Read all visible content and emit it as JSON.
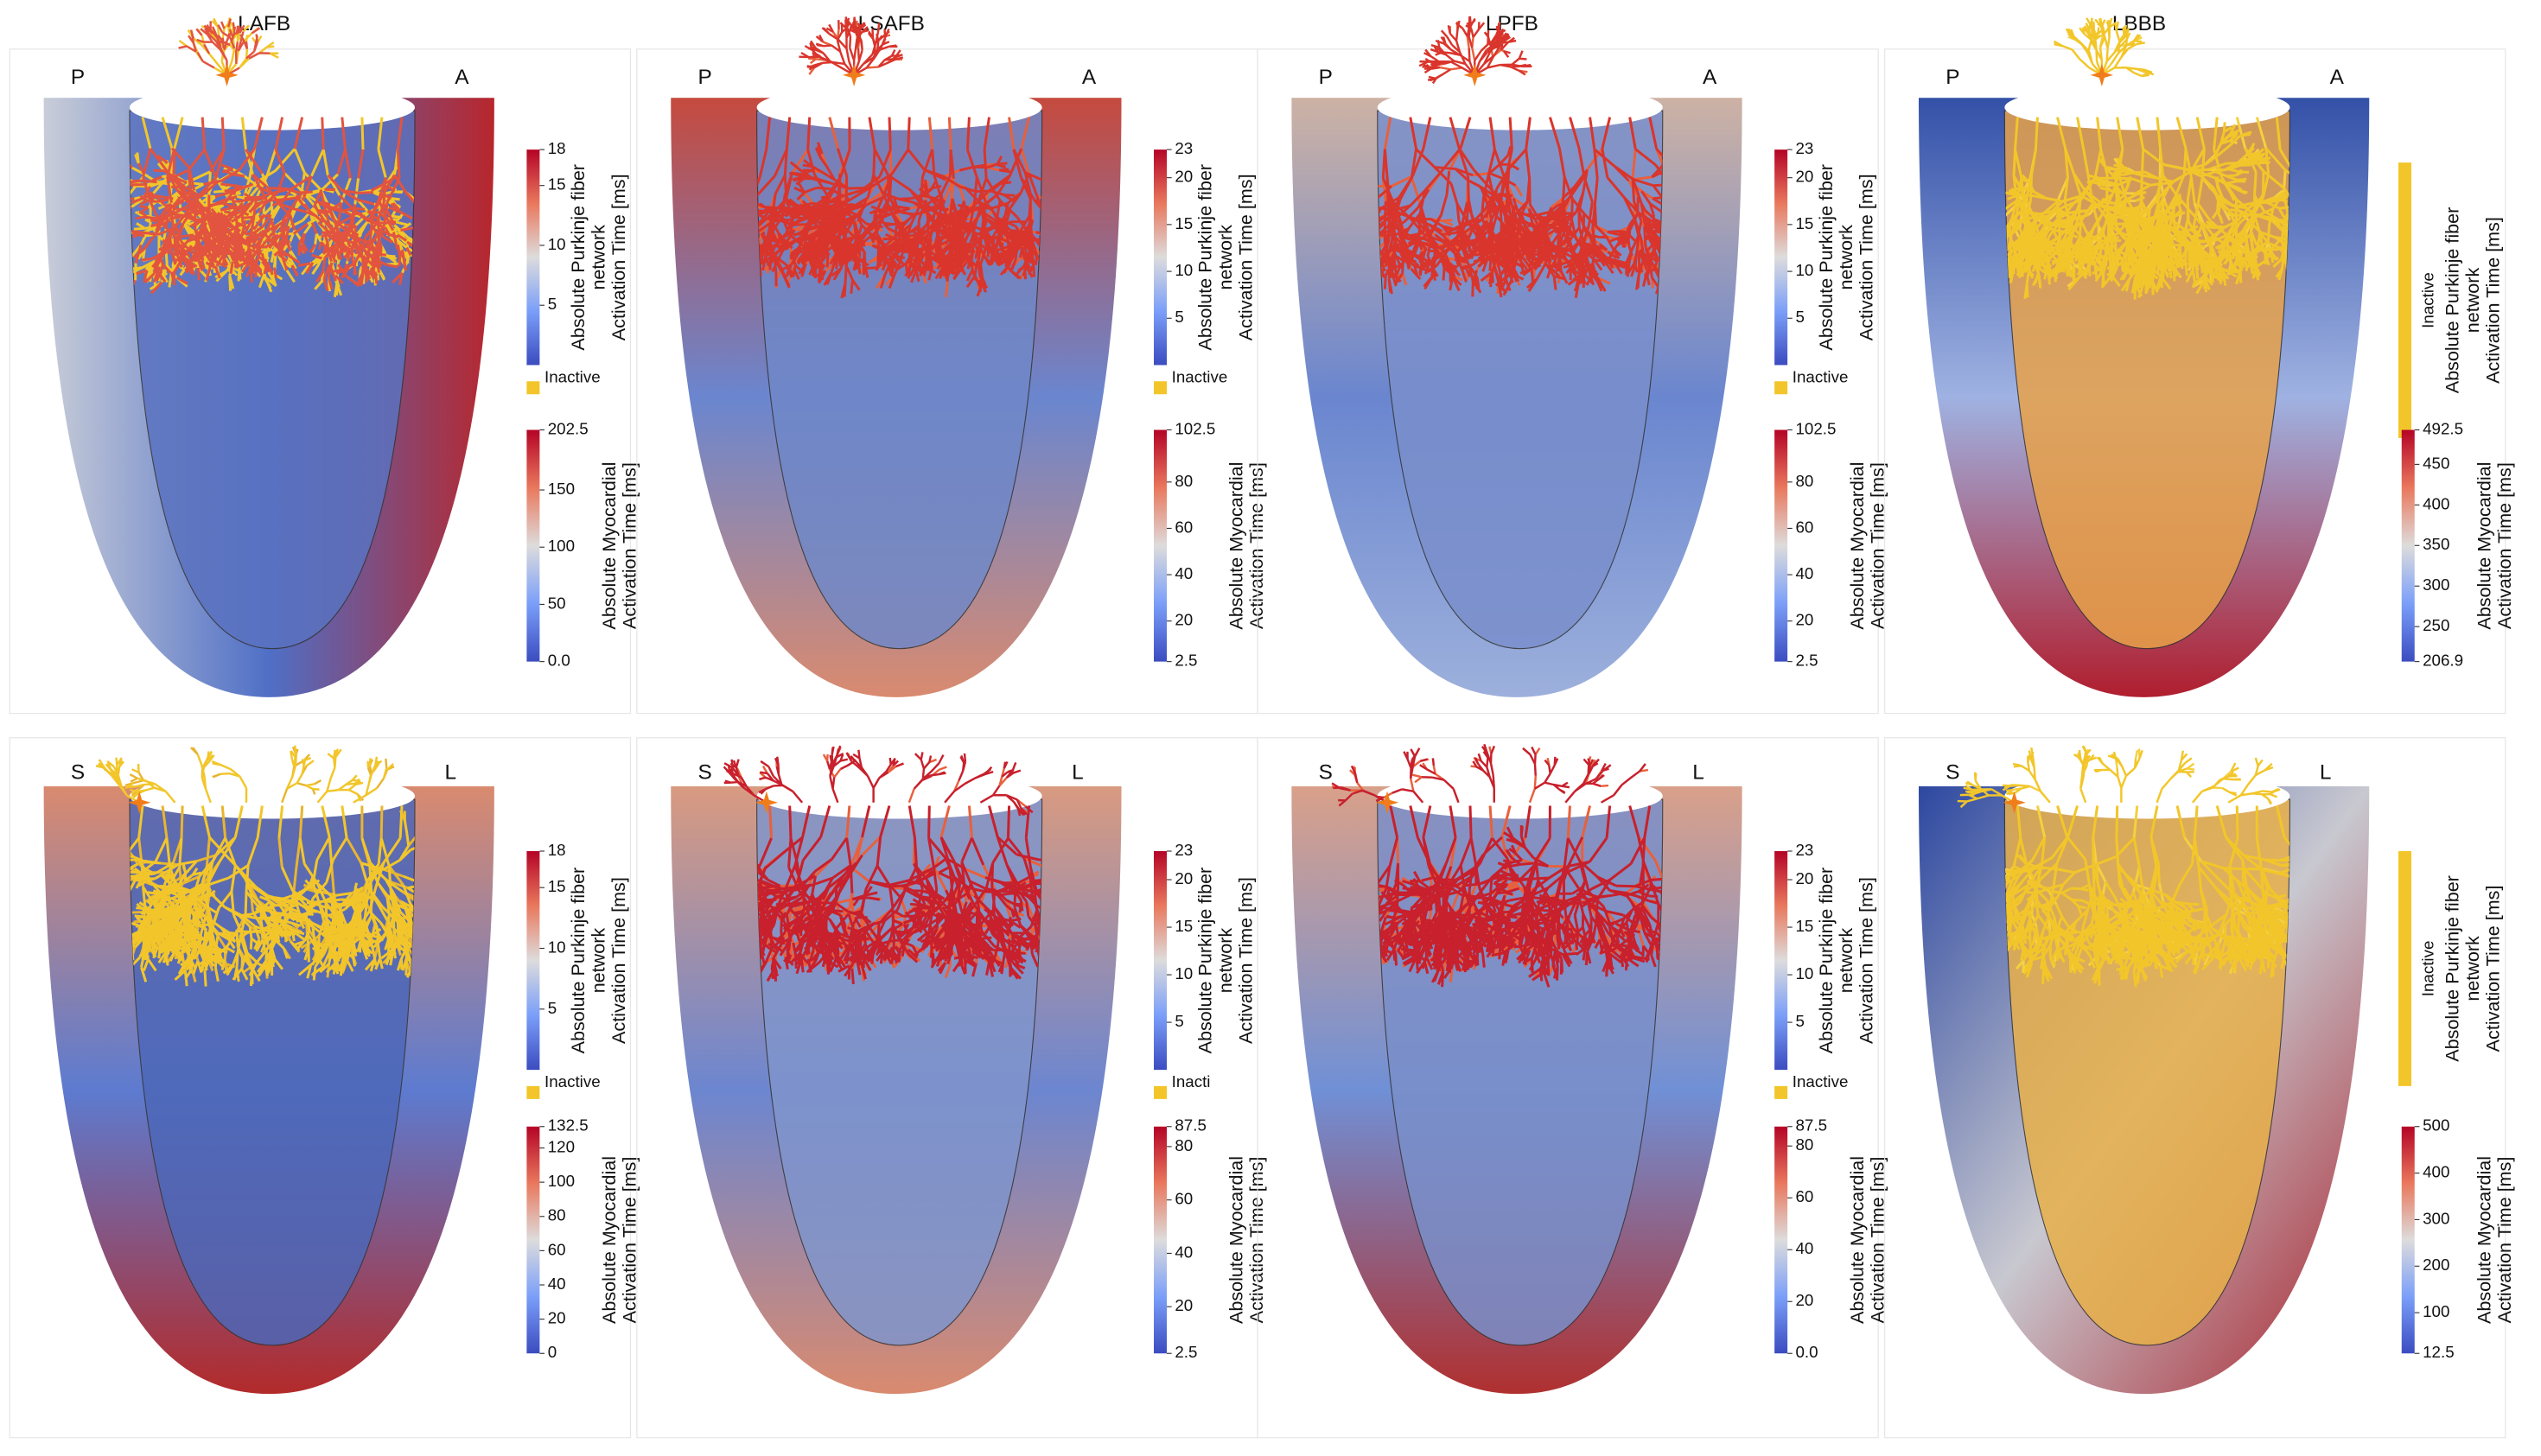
{
  "column_titles": [
    "LAFB",
    "LSAFB",
    "LPFB",
    "LBBB"
  ],
  "panels": [
    {
      "orientation": [
        "P",
        "A"
      ],
      "purkinje_colorbar": {
        "label": [
          "Absolute Purkinje fiber",
          "network",
          "Activation Time [ms]"
        ],
        "ticks": [
          18,
          15,
          10,
          5
        ],
        "range": [
          0,
          18
        ],
        "inactive": "Inactive"
      },
      "myocardial_colorbar": {
        "label": [
          "Absolute Myocardial",
          "Activation Time [ms]"
        ],
        "ticks": [
          202.5,
          150,
          100,
          50,
          {
            "value": 0,
            "label": "0.0"
          }
        ],
        "range": [
          0,
          202.5
        ]
      }
    },
    {
      "orientation": [
        "P",
        "A"
      ],
      "purkinje_colorbar": {
        "label": [
          "Absolute Purkinje fiber",
          "network",
          "Activation Time [ms]"
        ],
        "ticks": [
          23,
          20,
          15,
          10,
          5
        ],
        "range": [
          0,
          23
        ],
        "inactive": "Inactive"
      },
      "myocardial_colorbar": {
        "label": [
          "Absolute Myocardial",
          "Activation Time [ms]"
        ],
        "ticks": [
          102.5,
          80,
          60,
          40,
          20,
          2.5
        ],
        "range": [
          2.5,
          102.5
        ]
      }
    },
    {
      "orientation": [
        "P",
        "A"
      ],
      "purkinje_colorbar": {
        "label": [
          "Absolute Purkinje fiber",
          "network",
          "Activation Time [ms]"
        ],
        "ticks": [
          23,
          20,
          15,
          10,
          5
        ],
        "range": [
          0,
          23
        ],
        "inactive": "Inactive"
      },
      "myocardial_colorbar": {
        "label": [
          "Absolute Myocardial",
          "Activation Time [ms]"
        ],
        "ticks": [
          102.5,
          80,
          60,
          40,
          20,
          2.5
        ],
        "range": [
          2.5,
          102.5
        ]
      }
    },
    {
      "orientation": [
        "P",
        "A"
      ],
      "purkinje_colorbar": {
        "label": [
          "Absolute Purkinje fiber",
          "network",
          "Activation Time [ms]"
        ],
        "inactive": "Inactive"
      },
      "myocardial_colorbar": {
        "label": [
          "Absolute Myocardial",
          "Activation Time [ms]"
        ],
        "ticks": [
          492.5,
          450,
          400,
          350,
          300,
          250,
          206.9
        ],
        "range": [
          206.9,
          492.5
        ]
      }
    },
    {
      "orientation": [
        "S",
        "L"
      ],
      "purkinje_colorbar": {
        "label": [
          "Absolute Purkinje fiber",
          "network",
          "Activation Time [ms]"
        ],
        "ticks": [
          18,
          15,
          10,
          5
        ],
        "range": [
          0,
          18
        ],
        "inactive": "Inactive"
      },
      "myocardial_colorbar": {
        "label": [
          "Absolute Myocardial",
          "Activation Time [ms]"
        ],
        "ticks": [
          132.5,
          120,
          100,
          80,
          60,
          40,
          20,
          0
        ],
        "range": [
          0,
          132.5
        ]
      }
    },
    {
      "orientation": [
        "S",
        "L"
      ],
      "purkinje_colorbar": {
        "label": [
          "Absolute Purkinje fiber",
          "network",
          "Activation Time [ms]"
        ],
        "ticks": [
          23,
          20,
          15,
          10,
          5
        ],
        "range": [
          0,
          23
        ],
        "inactive": "Inacti"
      },
      "myocardial_colorbar": {
        "label": [
          "Absolute Myocardial",
          "Activation Time [ms]"
        ],
        "ticks": [
          87.5,
          80,
          60,
          40,
          20,
          2.5
        ],
        "range": [
          2.5,
          87.5
        ]
      }
    },
    {
      "orientation": [
        "S",
        "L"
      ],
      "purkinje_colorbar": {
        "label": [
          "Absolute Purkinje fiber",
          "network",
          "Activation Time [ms]"
        ],
        "ticks": [
          23,
          20,
          15,
          10,
          5
        ],
        "range": [
          0,
          23
        ],
        "inactive": "Inactive"
      },
      "myocardial_colorbar": {
        "label": [
          "Absolute Myocardial",
          "Activation Time [ms]"
        ],
        "ticks": [
          87.5,
          80,
          60,
          40,
          20,
          {
            "value": 0,
            "label": "0.0"
          }
        ],
        "range": [
          0,
          87.5
        ]
      }
    },
    {
      "orientation": [
        "S",
        "L"
      ],
      "purkinje_colorbar": {
        "label": [
          "Absolute Purkinje fiber",
          "network",
          "Activation Time [ms]"
        ],
        "inactive": "Inactive"
      },
      "myocardial_colorbar": {
        "label": [
          "Absolute Myocardial",
          "Activation Time [ms]"
        ],
        "ticks": [
          500,
          400,
          300,
          200,
          100,
          12.5
        ],
        "range": [
          12.5,
          500
        ]
      }
    }
  ]
}
